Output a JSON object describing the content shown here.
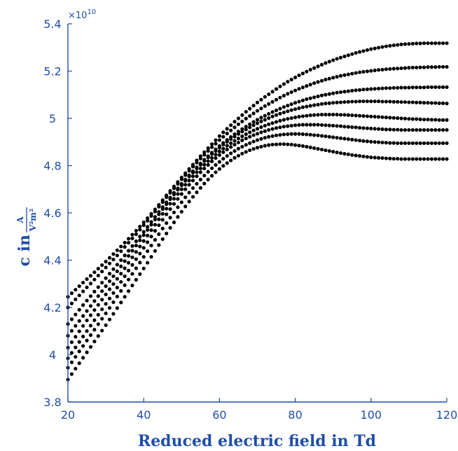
{
  "chart_data": {
    "type": "scatter",
    "xlabel": "Reduced electric field in Td",
    "ylabel_prefix": "c in",
    "ylabel_numerator": "A",
    "ylabel_denominator": "V²m²",
    "y_exponent_label": "×10",
    "y_exponent_power": "10",
    "xlim": [
      20,
      120
    ],
    "ylim": [
      3.8,
      5.4
    ],
    "x_ticks": [
      20,
      40,
      60,
      80,
      100,
      120
    ],
    "x_tick_labels": [
      "20",
      "40",
      "60",
      "80",
      "100",
      "120"
    ],
    "y_ticks": [
      3.8,
      4.0,
      4.2,
      4.4,
      4.6,
      4.8,
      5.0,
      5.2,
      5.4
    ],
    "y_tick_labels": [
      "3.8",
      "4",
      "4.2",
      "4.4",
      "4.6",
      "4.8",
      "5",
      "5.2",
      "5.4"
    ],
    "grid": false,
    "legend": "none",
    "marker_color": "#000000",
    "axis_color": "#1f4ea8",
    "x": [
      20,
      21,
      22,
      23,
      24,
      25,
      26,
      27,
      28,
      29,
      30,
      31,
      32,
      33,
      34,
      35,
      36,
      37,
      38,
      39,
      40,
      41,
      42,
      43,
      44,
      45,
      46,
      47,
      48,
      49,
      50,
      51,
      52,
      53,
      54,
      55,
      56,
      57,
      58,
      59,
      60,
      61,
      62,
      63,
      64,
      65,
      66,
      67,
      68,
      69,
      70,
      71,
      72,
      73,
      74,
      75,
      76,
      77,
      78,
      79,
      80,
      81,
      82,
      83,
      84,
      85,
      86,
      87,
      88,
      89,
      90,
      91,
      92,
      93,
      94,
      95,
      96,
      97,
      98,
      99,
      100,
      101,
      102,
      103,
      104,
      105,
      106,
      107,
      108,
      109,
      110,
      111,
      112,
      113,
      114,
      115,
      116,
      117,
      118,
      119,
      120
    ],
    "series": [
      {
        "values": [
          4.245,
          4.26,
          4.275,
          4.29,
          4.305,
          4.32,
          4.334,
          4.349,
          4.364,
          4.379,
          4.394,
          4.41,
          4.426,
          4.442,
          4.458,
          4.474,
          4.491,
          4.508,
          4.525,
          4.542,
          4.56,
          4.578,
          4.596,
          4.615,
          4.634,
          4.654,
          4.674,
          4.693,
          4.712,
          4.731,
          4.75,
          4.768,
          4.786,
          4.804,
          4.822,
          4.84,
          4.857,
          4.874,
          4.891,
          4.908,
          4.925,
          4.941,
          4.956,
          4.971,
          4.986,
          5.0,
          5.014,
          5.028,
          5.041,
          5.054,
          5.067,
          5.079,
          5.091,
          5.102,
          5.113,
          5.124,
          5.135,
          5.145,
          5.155,
          5.164,
          5.173,
          5.182,
          5.19,
          5.198,
          5.206,
          5.213,
          5.22,
          5.227,
          5.234,
          5.24,
          5.246,
          5.252,
          5.257,
          5.262,
          5.267,
          5.272,
          5.277,
          5.281,
          5.285,
          5.289,
          5.293,
          5.296,
          5.299,
          5.302,
          5.305,
          5.307,
          5.309,
          5.311,
          5.313,
          5.314,
          5.315,
          5.316,
          5.317,
          5.317,
          5.318,
          5.318,
          5.318,
          5.318,
          5.318,
          5.318,
          5.318
        ]
      },
      {
        "values": [
          4.2,
          4.217,
          4.234,
          4.251,
          4.268,
          4.285,
          4.301,
          4.318,
          4.335,
          4.352,
          4.369,
          4.386,
          4.403,
          4.42,
          4.438,
          4.456,
          4.474,
          4.492,
          4.51,
          4.529,
          4.548,
          4.567,
          4.587,
          4.606,
          4.626,
          4.646,
          4.666,
          4.685,
          4.704,
          4.723,
          4.742,
          4.76,
          4.778,
          4.796,
          4.813,
          4.83,
          4.846,
          4.862,
          4.878,
          4.893,
          4.908,
          4.922,
          4.936,
          4.949,
          4.962,
          4.975,
          4.987,
          4.999,
          5.01,
          5.021,
          5.032,
          5.042,
          5.052,
          5.061,
          5.07,
          5.079,
          5.088,
          5.096,
          5.104,
          5.111,
          5.118,
          5.125,
          5.131,
          5.137,
          5.143,
          5.149,
          5.154,
          5.159,
          5.164,
          5.168,
          5.172,
          5.176,
          5.18,
          5.183,
          5.186,
          5.189,
          5.192,
          5.195,
          5.197,
          5.199,
          5.201,
          5.203,
          5.205,
          5.206,
          5.208,
          5.209,
          5.21,
          5.211,
          5.212,
          5.213,
          5.214,
          5.215,
          5.215,
          5.216,
          5.216,
          5.217,
          5.217,
          5.217,
          5.218,
          5.218,
          5.218
        ]
      },
      {
        "values": [
          4.13,
          4.15,
          4.17,
          4.19,
          4.21,
          4.229,
          4.248,
          4.267,
          4.286,
          4.305,
          4.324,
          4.343,
          4.362,
          4.381,
          4.4,
          4.42,
          4.44,
          4.46,
          4.48,
          4.5,
          4.52,
          4.541,
          4.562,
          4.583,
          4.604,
          4.625,
          4.645,
          4.665,
          4.685,
          4.704,
          4.723,
          4.741,
          4.759,
          4.776,
          4.793,
          4.809,
          4.825,
          4.84,
          4.855,
          4.869,
          4.883,
          4.896,
          4.909,
          4.921,
          4.933,
          4.944,
          4.955,
          4.965,
          4.975,
          4.985,
          4.994,
          5.003,
          5.011,
          5.019,
          5.027,
          5.034,
          5.041,
          5.048,
          5.054,
          5.06,
          5.066,
          5.071,
          5.076,
          5.081,
          5.085,
          5.089,
          5.093,
          5.097,
          5.1,
          5.103,
          5.106,
          5.109,
          5.111,
          5.113,
          5.115,
          5.117,
          5.119,
          5.12,
          5.122,
          5.123,
          5.124,
          5.125,
          5.126,
          5.127,
          5.128,
          5.128,
          5.129,
          5.129,
          5.13,
          5.13,
          5.13,
          5.131,
          5.131,
          5.131,
          5.131,
          5.132,
          5.132,
          5.132,
          5.132,
          5.132,
          5.132
        ]
      },
      {
        "values": [
          4.08,
          4.101,
          4.122,
          4.143,
          4.164,
          4.185,
          4.206,
          4.227,
          4.248,
          4.269,
          4.29,
          4.311,
          4.332,
          4.353,
          4.374,
          4.396,
          4.418,
          4.44,
          4.462,
          4.484,
          4.506,
          4.528,
          4.55,
          4.572,
          4.594,
          4.616,
          4.637,
          4.658,
          4.678,
          4.698,
          4.717,
          4.736,
          4.754,
          4.771,
          4.788,
          4.804,
          4.82,
          4.835,
          4.849,
          4.863,
          4.876,
          4.889,
          4.901,
          4.912,
          4.923,
          4.934,
          4.944,
          4.953,
          4.962,
          4.971,
          4.979,
          4.987,
          4.994,
          5.001,
          5.008,
          5.014,
          5.02,
          5.025,
          5.03,
          5.035,
          5.039,
          5.043,
          5.047,
          5.05,
          5.053,
          5.056,
          5.058,
          5.061,
          5.063,
          5.064,
          5.066,
          5.067,
          5.068,
          5.069,
          5.07,
          5.071,
          5.071,
          5.072,
          5.072,
          5.072,
          5.072,
          5.072,
          5.072,
          5.071,
          5.071,
          5.071,
          5.07,
          5.07,
          5.069,
          5.069,
          5.068,
          5.068,
          5.067,
          5.067,
          5.066,
          5.066,
          5.065,
          5.065,
          5.064,
          5.064,
          5.063
        ]
      },
      {
        "values": [
          4.03,
          4.053,
          4.076,
          4.099,
          4.122,
          4.145,
          4.167,
          4.189,
          4.211,
          4.233,
          4.255,
          4.277,
          4.299,
          4.321,
          4.343,
          4.366,
          4.389,
          4.412,
          4.435,
          4.458,
          4.481,
          4.504,
          4.527,
          4.55,
          4.573,
          4.596,
          4.618,
          4.639,
          4.66,
          4.68,
          4.7,
          4.719,
          4.737,
          4.755,
          4.772,
          4.788,
          4.804,
          4.819,
          4.833,
          4.847,
          4.86,
          4.872,
          4.884,
          4.895,
          4.905,
          4.915,
          4.924,
          4.933,
          4.941,
          4.949,
          4.956,
          4.963,
          4.969,
          4.975,
          4.98,
          4.985,
          4.99,
          4.994,
          4.998,
          5.001,
          5.004,
          5.007,
          5.009,
          5.011,
          5.013,
          5.014,
          5.015,
          5.016,
          5.016,
          5.016,
          5.016,
          5.016,
          5.015,
          5.015,
          5.014,
          5.013,
          5.012,
          5.011,
          5.01,
          5.009,
          5.008,
          5.007,
          5.006,
          5.005,
          5.004,
          5.003,
          5.002,
          5.001,
          5.0,
          4.999,
          4.998,
          4.997,
          4.997,
          4.996,
          4.995,
          4.995,
          4.994,
          4.994,
          4.993,
          4.993,
          4.993
        ]
      },
      {
        "values": [
          3.985,
          4.008,
          4.031,
          4.054,
          4.077,
          4.1,
          4.123,
          4.146,
          4.169,
          4.192,
          4.215,
          4.238,
          4.261,
          4.284,
          4.308,
          4.332,
          4.356,
          4.38,
          4.404,
          4.428,
          4.452,
          4.476,
          4.5,
          4.524,
          4.548,
          4.571,
          4.594,
          4.616,
          4.638,
          4.659,
          4.68,
          4.7,
          4.719,
          4.737,
          4.755,
          4.772,
          4.788,
          4.803,
          4.818,
          4.832,
          4.845,
          4.857,
          4.868,
          4.879,
          4.889,
          4.898,
          4.907,
          4.915,
          4.922,
          4.929,
          4.935,
          4.941,
          4.946,
          4.951,
          4.955,
          4.959,
          4.962,
          4.965,
          4.967,
          4.969,
          4.971,
          4.972,
          4.973,
          4.973,
          4.973,
          4.973,
          4.973,
          4.972,
          4.971,
          4.97,
          4.969,
          4.968,
          4.967,
          4.965,
          4.964,
          4.963,
          4.962,
          4.96,
          4.959,
          4.958,
          4.957,
          4.956,
          4.955,
          4.954,
          4.953,
          4.953,
          4.952,
          4.952,
          4.951,
          4.951,
          4.951,
          4.951,
          4.951,
          4.951,
          4.951,
          4.951,
          4.951,
          4.951,
          4.951,
          4.951,
          4.951
        ]
      },
      {
        "values": [
          3.945,
          3.968,
          3.991,
          4.014,
          4.037,
          4.06,
          4.083,
          4.106,
          4.129,
          4.152,
          4.175,
          4.198,
          4.222,
          4.246,
          4.27,
          4.294,
          4.318,
          4.342,
          4.366,
          4.39,
          4.414,
          4.438,
          4.462,
          4.486,
          4.51,
          4.534,
          4.557,
          4.58,
          4.602,
          4.624,
          4.645,
          4.666,
          4.686,
          4.705,
          4.723,
          4.741,
          4.758,
          4.774,
          4.789,
          4.803,
          4.816,
          4.829,
          4.841,
          4.852,
          4.862,
          4.872,
          4.88,
          4.888,
          4.895,
          4.902,
          4.908,
          4.913,
          4.918,
          4.922,
          4.925,
          4.928,
          4.93,
          4.932,
          4.933,
          4.934,
          4.934,
          4.934,
          4.933,
          4.932,
          4.931,
          4.929,
          4.928,
          4.926,
          4.924,
          4.922,
          4.92,
          4.918,
          4.916,
          4.914,
          4.912,
          4.91,
          4.908,
          4.906,
          4.904,
          4.903,
          4.901,
          4.9,
          4.899,
          4.898,
          4.897,
          4.896,
          4.896,
          4.895,
          4.895,
          4.895,
          4.895,
          4.895,
          4.895,
          4.895,
          4.895,
          4.895,
          4.895,
          4.895,
          4.895,
          4.895,
          4.895
        ]
      },
      {
        "values": [
          3.895,
          3.918,
          3.941,
          3.964,
          3.987,
          4.01,
          4.033,
          4.056,
          4.079,
          4.102,
          4.125,
          4.149,
          4.173,
          4.197,
          4.221,
          4.245,
          4.269,
          4.293,
          4.317,
          4.341,
          4.365,
          4.389,
          4.414,
          4.439,
          4.464,
          4.489,
          4.513,
          4.537,
          4.56,
          4.583,
          4.605,
          4.627,
          4.648,
          4.668,
          4.687,
          4.706,
          4.724,
          4.741,
          4.757,
          4.772,
          4.786,
          4.799,
          4.811,
          4.822,
          4.833,
          4.842,
          4.851,
          4.858,
          4.865,
          4.871,
          4.876,
          4.88,
          4.884,
          4.887,
          4.889,
          4.89,
          4.891,
          4.891,
          4.89,
          4.889,
          4.887,
          4.885,
          4.883,
          4.88,
          4.877,
          4.874,
          4.871,
          4.868,
          4.865,
          4.862,
          4.859,
          4.856,
          4.853,
          4.85,
          4.848,
          4.845,
          4.843,
          4.841,
          4.839,
          4.837,
          4.835,
          4.834,
          4.833,
          4.832,
          4.831,
          4.83,
          4.829,
          4.829,
          4.828,
          4.828,
          4.828,
          4.828,
          4.828,
          4.828,
          4.828,
          4.828,
          4.828,
          4.828,
          4.828,
          4.828,
          4.828
        ]
      }
    ]
  }
}
